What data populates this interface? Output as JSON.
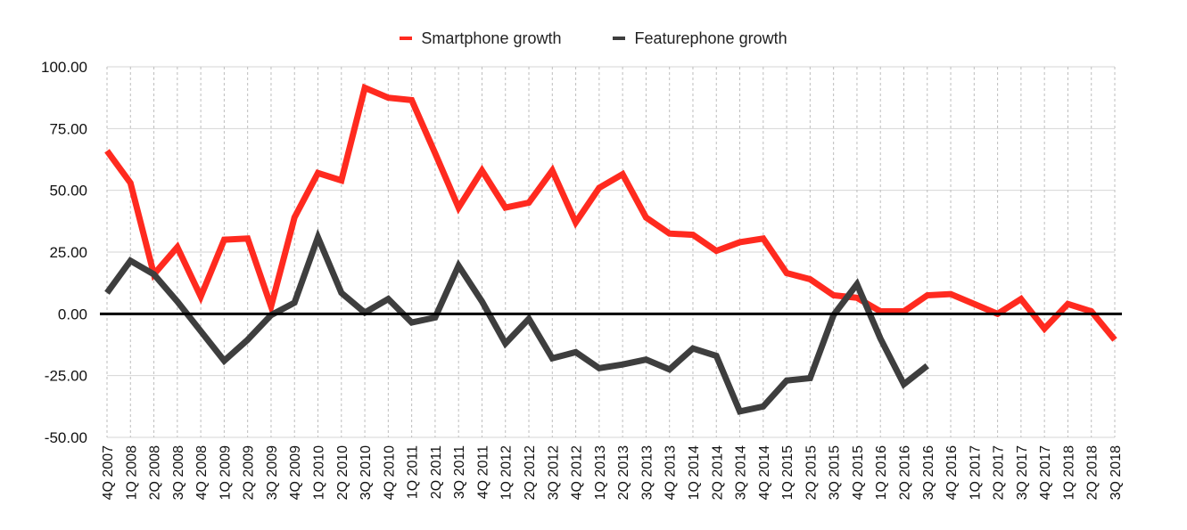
{
  "chart_data": {
    "type": "line",
    "categories": [
      "4Q 2007",
      "1Q 2008",
      "2Q 2008",
      "3Q 2008",
      "4Q 2008",
      "1Q 2009",
      "2Q 2009",
      "3Q 2009",
      "4Q 2009",
      "1Q 2010",
      "2Q 2010",
      "3Q 2010",
      "4Q 2010",
      "1Q 2011",
      "2Q 2011",
      "3Q 2011",
      "4Q 2011",
      "1Q 2012",
      "2Q 2012",
      "3Q 2012",
      "4Q 2012",
      "1Q 2013",
      "2Q 2013",
      "3Q 2013",
      "4Q 2013",
      "1Q 2014",
      "2Q 2014",
      "3Q 2014",
      "4Q 2014",
      "1Q 2015",
      "2Q 2015",
      "3Q 2015",
      "4Q 2015",
      "1Q 2016",
      "2Q 2016",
      "3Q 2016",
      "4Q 2016",
      "1Q 2017",
      "2Q 2017",
      "3Q 2017",
      "4Q 2017",
      "1Q 2018",
      "2Q 2018",
      "3Q 2018"
    ],
    "series": [
      {
        "name": "Smartphone growth",
        "color": "#ff2a1f",
        "values": [
          66,
          53,
          16,
          27,
          7,
          30,
          30.5,
          3,
          39,
          57,
          54,
          91.5,
          87.5,
          86.5,
          65,
          43,
          58,
          43,
          45,
          58,
          37,
          51,
          56.5,
          39,
          32.5,
          32,
          25.5,
          29,
          30.5,
          16.5,
          14,
          7.5,
          6.5,
          1,
          1,
          7.5,
          8,
          4,
          0,
          6,
          -6,
          4,
          1,
          -10.5
        ]
      },
      {
        "name": "Featurephone growth",
        "color": "#3e3e3e",
        "values": [
          8.5,
          21.5,
          16,
          5,
          -7,
          -19,
          -10.5,
          -0.5,
          4.5,
          31,
          8.5,
          0.5,
          6,
          -3.5,
          -1.5,
          19.5,
          5,
          -12,
          -2,
          -18,
          -15.5,
          -22,
          -20.5,
          -18.5,
          -22.5,
          -14,
          -17,
          -39.5,
          -37.5,
          -27,
          -26,
          -0.5,
          12,
          -10,
          -28.5,
          -21,
          null,
          null,
          null,
          null,
          null,
          null,
          null,
          null
        ]
      }
    ],
    "yticks": [
      "100.00",
      "75.00",
      "50.00",
      "25.00",
      "0.00",
      "-25.00",
      "-50.00"
    ],
    "ylim": [
      -50,
      100
    ],
    "grid": {
      "horizontal": true,
      "vertical_dashed": true
    },
    "legend_position": "top-center",
    "title": "",
    "xlabel": "",
    "ylabel": ""
  }
}
